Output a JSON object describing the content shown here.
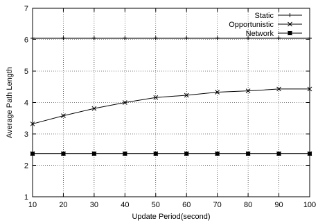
{
  "chart_data": {
    "type": "line",
    "title": "",
    "xlabel": "Update Period(second)",
    "ylabel": "Average Path Length",
    "xlim": [
      10,
      100
    ],
    "ylim": [
      1,
      7
    ],
    "xticks": [
      10,
      20,
      30,
      40,
      50,
      60,
      70,
      80,
      90,
      100
    ],
    "yticks": [
      1,
      2,
      3,
      4,
      5,
      6,
      7
    ],
    "grid": true,
    "legend_position": "top-right",
    "x": [
      10,
      20,
      30,
      40,
      50,
      60,
      70,
      80,
      90,
      100
    ],
    "series": [
      {
        "name": "Static",
        "marker": "plus",
        "color": "#000000",
        "values": [
          6.05,
          6.05,
          6.05,
          6.05,
          6.05,
          6.05,
          6.05,
          6.05,
          6.05,
          6.05
        ]
      },
      {
        "name": "Opportunistic",
        "marker": "cross",
        "color": "#000000",
        "values": [
          3.32,
          3.58,
          3.81,
          4.0,
          4.16,
          4.23,
          4.33,
          4.37,
          4.43,
          4.43
        ]
      },
      {
        "name": "Network",
        "marker": "square-star",
        "color": "#000000",
        "values": [
          2.37,
          2.37,
          2.37,
          2.37,
          2.37,
          2.37,
          2.37,
          2.37,
          2.37,
          2.37
        ]
      }
    ]
  }
}
